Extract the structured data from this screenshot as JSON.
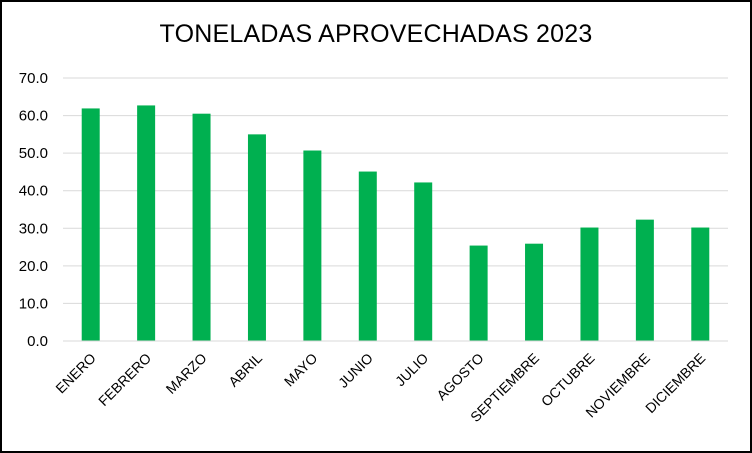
{
  "chart_data": {
    "type": "bar",
    "title": "TONELADAS APROVECHADAS 2023",
    "xlabel": "",
    "ylabel": "",
    "categories": [
      "ENERO",
      "FEBRERO",
      "MARZO",
      "ABRIL",
      "MAYO",
      "JUNIO",
      "JULIO",
      "AGOSTO",
      "SEPTIEMBRE",
      "OCTUBRE",
      "NOVIEMBRE",
      "DICIEMBRE"
    ],
    "values": [
      61.9,
      62.7,
      60.5,
      55.0,
      50.7,
      45.1,
      42.2,
      25.4,
      25.9,
      30.2,
      32.3,
      30.2
    ],
    "ylim": [
      0,
      70
    ],
    "yticks": [
      "0.0",
      "10.0",
      "20.0",
      "30.0",
      "40.0",
      "50.0",
      "60.0",
      "70.0"
    ],
    "grid": true,
    "legend": "none",
    "bar_color": "#00b050",
    "grid_color": "#d9d9d9"
  }
}
